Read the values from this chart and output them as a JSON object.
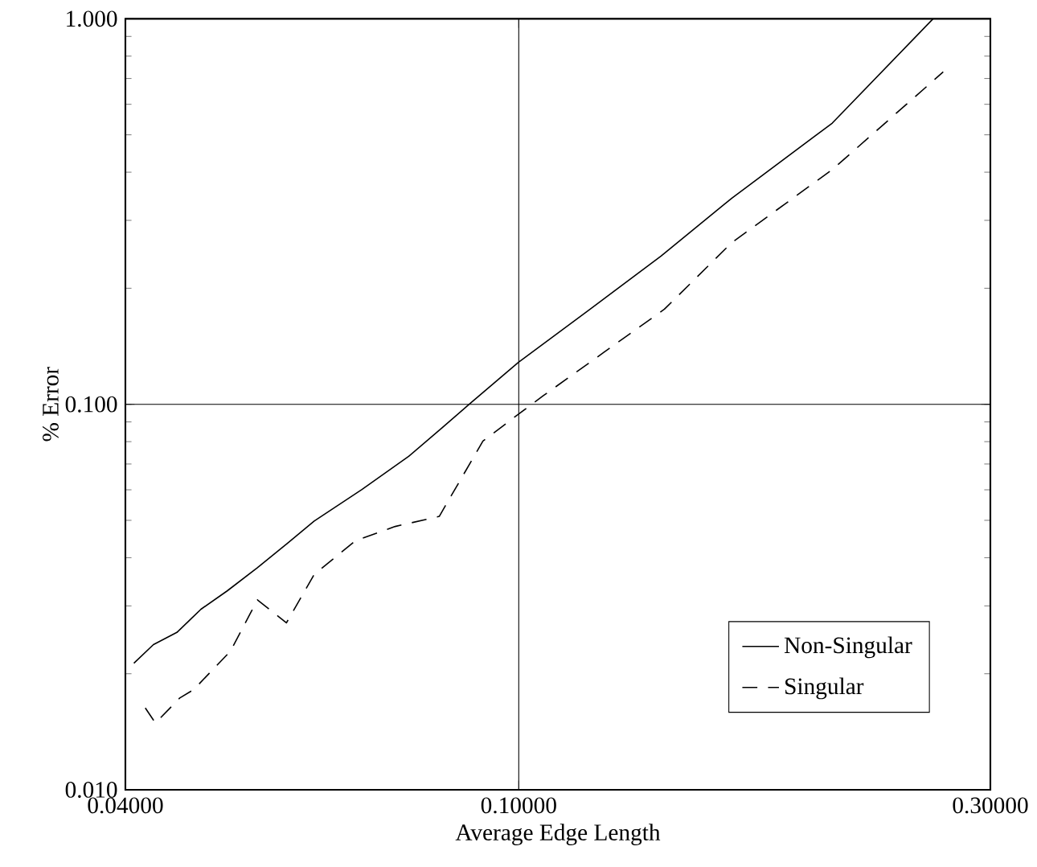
{
  "chart_data": {
    "type": "line",
    "xlabel": "Average Edge Length",
    "ylabel": "% Error",
    "log": "xy",
    "grid": true,
    "legend": "bottom right",
    "marker": "none",
    "xlim": [
      0.04,
      0.3
    ],
    "ylim": [
      0.01,
      1.0
    ],
    "xticks": [
      {
        "value": 0.04,
        "label": "0.04000"
      },
      {
        "value": 0.1,
        "label": "0.10000"
      },
      {
        "value": 0.3,
        "label": "0.30000"
      }
    ],
    "yticks": [
      {
        "value": 0.01,
        "label": "0.010"
      },
      {
        "value": 0.1,
        "label": "0.100"
      },
      {
        "value": 1.0,
        "label": "1.000"
      }
    ],
    "series": [
      {
        "name": "Non-Singular",
        "color": "#000000",
        "line_style": "solid",
        "x": [
          0.0408,
          0.0427,
          0.0451,
          0.0477,
          0.0507,
          0.0544,
          0.0584,
          0.0621,
          0.0694,
          0.0774,
          0.0837,
          0.0891,
          0.0999,
          0.1181,
          0.1393,
          0.1642,
          0.2076,
          0.2625
        ],
        "values": [
          0.0213,
          0.0238,
          0.0256,
          0.0294,
          0.0328,
          0.0377,
          0.0437,
          0.0498,
          0.0601,
          0.0733,
          0.087,
          0.1,
          0.1284,
          0.1765,
          0.2423,
          0.3423,
          0.5363,
          1.0
        ]
      },
      {
        "name": "Singular",
        "color": "#000000",
        "line_style": "dashed",
        "x": [
          0.0419,
          0.0429,
          0.0454,
          0.0469,
          0.0511,
          0.0544,
          0.0582,
          0.0621,
          0.0683,
          0.075,
          0.0831,
          0.092,
          0.0999,
          0.1059,
          0.1219,
          0.1404,
          0.1642,
          0.2076,
          0.2688
        ],
        "values": [
          0.0163,
          0.0149,
          0.0173,
          0.0182,
          0.0229,
          0.0311,
          0.0271,
          0.0362,
          0.0442,
          0.0482,
          0.0512,
          0.0803,
          0.0942,
          0.1053,
          0.1363,
          0.1765,
          0.2624,
          0.4063,
          0.728
        ]
      }
    ]
  }
}
